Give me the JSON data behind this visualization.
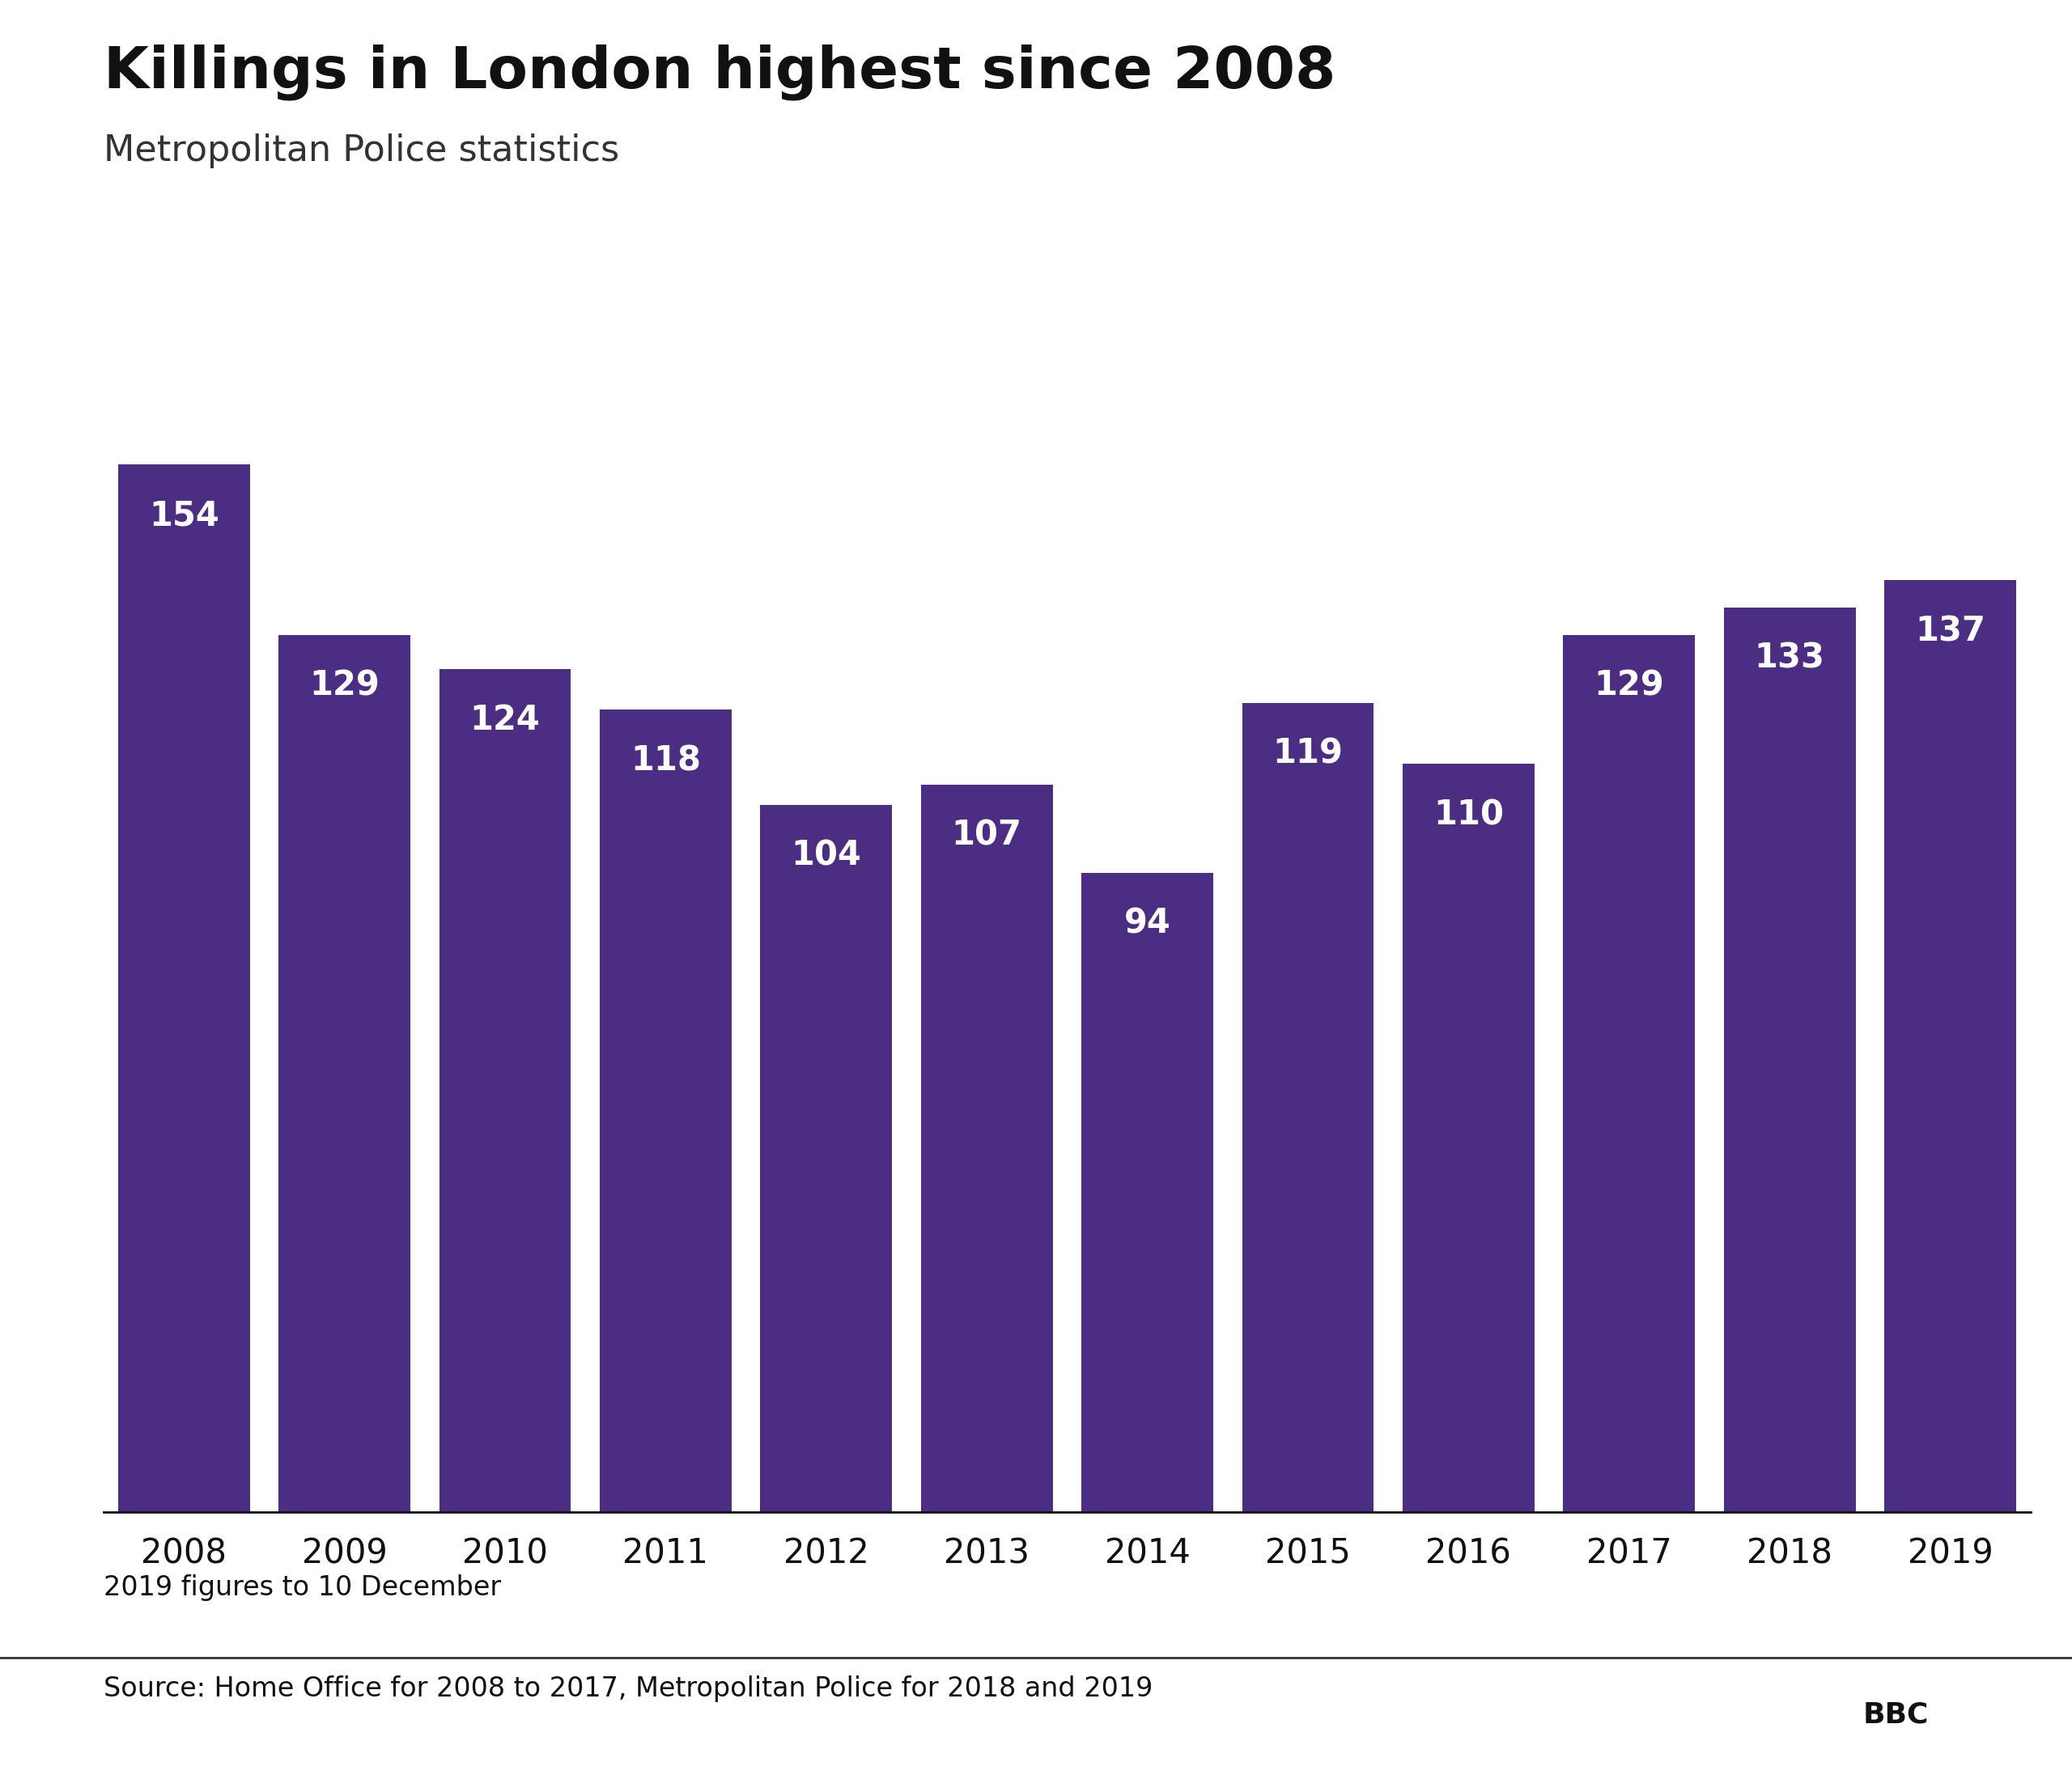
{
  "title": "Killings in London highest since 2008",
  "subtitle": "Metropolitan Police statistics",
  "years": [
    "2008",
    "2009",
    "2010",
    "2011",
    "2012",
    "2013",
    "2014",
    "2015",
    "2016",
    "2017",
    "2018",
    "2019"
  ],
  "values": [
    154,
    129,
    124,
    118,
    104,
    107,
    94,
    119,
    110,
    129,
    133,
    137
  ],
  "bar_color": "#4b2e83",
  "label_color": "#ffffff",
  "background_color": "#ffffff",
  "footnote": "2019 figures to 10 December",
  "source": "Source: Home Office for 2008 to 2017, Metropolitan Police for 2018 and 2019",
  "bbc_logo_text": "BBC",
  "title_fontsize": 52,
  "subtitle_fontsize": 32,
  "label_fontsize": 30,
  "xtick_fontsize": 30,
  "footnote_fontsize": 24,
  "source_fontsize": 24,
  "ylim_max": 170,
  "bar_width": 0.82
}
